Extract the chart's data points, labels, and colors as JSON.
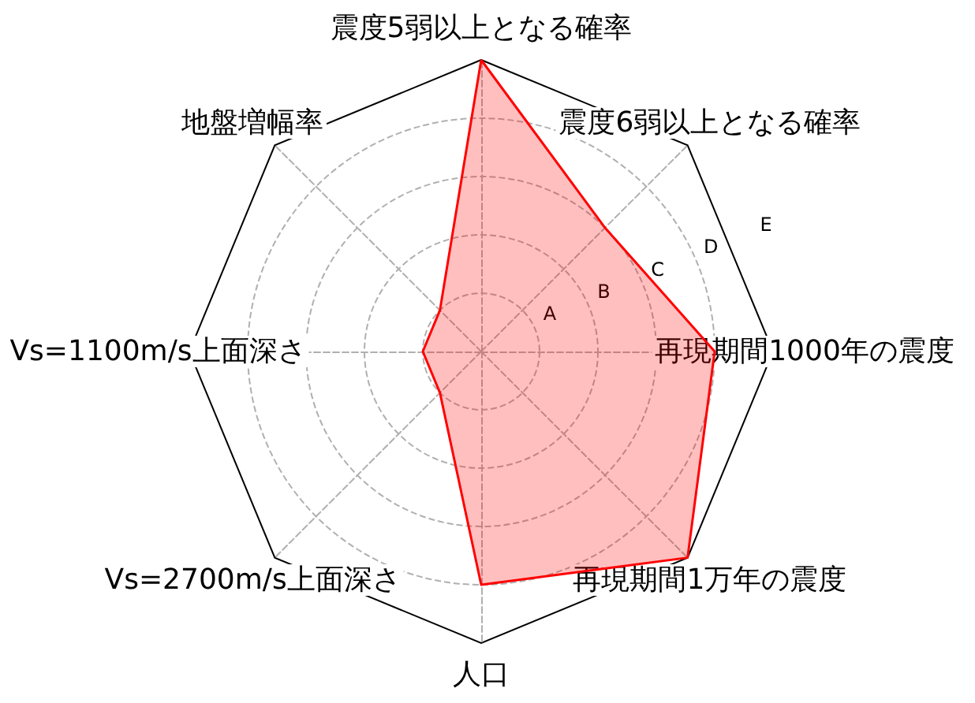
{
  "chart_data": {
    "type": "radar",
    "categories": [
      "震度5弱以上となる確率",
      "震度6弱以上となる確率",
      "再現期間1000年の震度",
      "再現期間1万年の震度",
      "人口",
      "Vs=2700m/s上面深さ",
      "Vs=1100m/s上面深さ",
      "地盤増幅率"
    ],
    "series": [
      {
        "color": "#ff0000",
        "values": [
          5,
          3,
          4,
          5,
          4,
          1,
          1,
          1
        ]
      }
    ],
    "ylim": [
      0,
      5
    ],
    "yticks": [
      {
        "value": 1,
        "label": "A"
      },
      {
        "value": 2,
        "label": "B"
      },
      {
        "value": 3,
        "label": "C"
      },
      {
        "value": 4,
        "label": "D"
      },
      {
        "value": 5,
        "label": "E"
      }
    ],
    "grid": true,
    "marker": "none",
    "line_style": "solid"
  }
}
